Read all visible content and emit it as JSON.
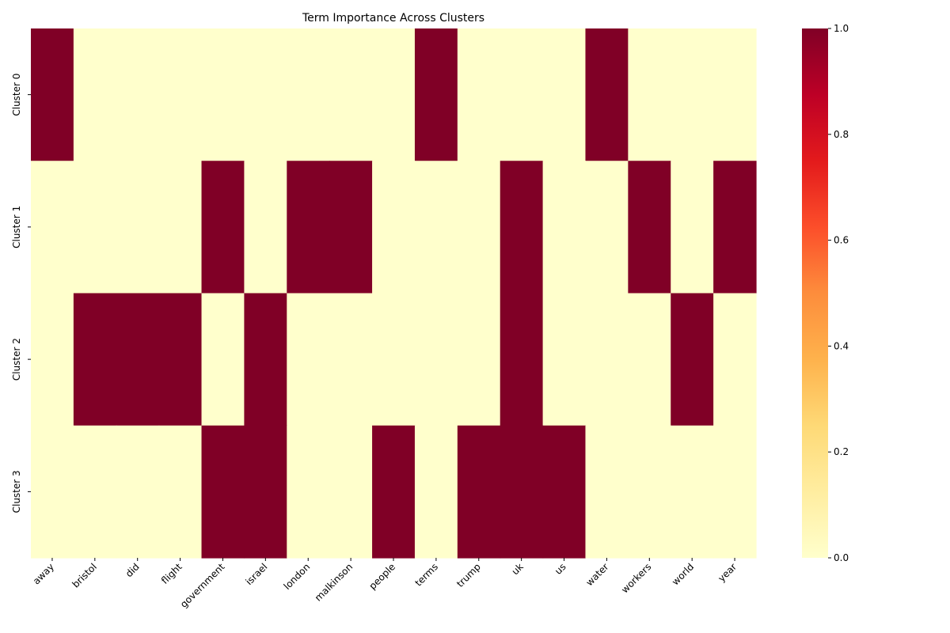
{
  "chart_data": {
    "type": "heatmap",
    "title": "Term Importance Across Clusters",
    "xlabel": "",
    "ylabel": "",
    "x": [
      "away",
      "bristol",
      "did",
      "flight",
      "government",
      "israel",
      "london",
      "malkinson",
      "people",
      "terms",
      "trump",
      "uk",
      "us",
      "water",
      "workers",
      "world",
      "year"
    ],
    "y": [
      "Cluster 0",
      "Cluster 1",
      "Cluster 2",
      "Cluster 3"
    ],
    "values": [
      [
        1,
        0,
        0,
        0,
        0,
        0,
        0,
        0,
        0,
        1,
        0,
        0,
        0,
        1,
        0,
        0,
        0
      ],
      [
        0,
        0,
        0,
        0,
        1,
        0,
        1,
        1,
        0,
        0,
        0,
        1,
        0,
        0,
        1,
        0,
        1
      ],
      [
        0,
        1,
        1,
        1,
        0,
        1,
        0,
        0,
        0,
        0,
        0,
        1,
        0,
        0,
        0,
        1,
        0
      ],
      [
        0,
        0,
        0,
        0,
        1,
        1,
        0,
        0,
        1,
        0,
        1,
        1,
        1,
        0,
        0,
        0,
        0
      ]
    ],
    "colorbar": {
      "range": [
        0,
        1
      ],
      "ticks": [
        "0.0",
        "0.2",
        "0.4",
        "0.6",
        "0.8",
        "1.0"
      ],
      "colormap": [
        "#ffffcc",
        "#ffeda0",
        "#fed976",
        "#feb24c",
        "#fd8d3c",
        "#fc4e2a",
        "#e31a1c",
        "#bd0026",
        "#800026"
      ]
    },
    "grid": false
  }
}
